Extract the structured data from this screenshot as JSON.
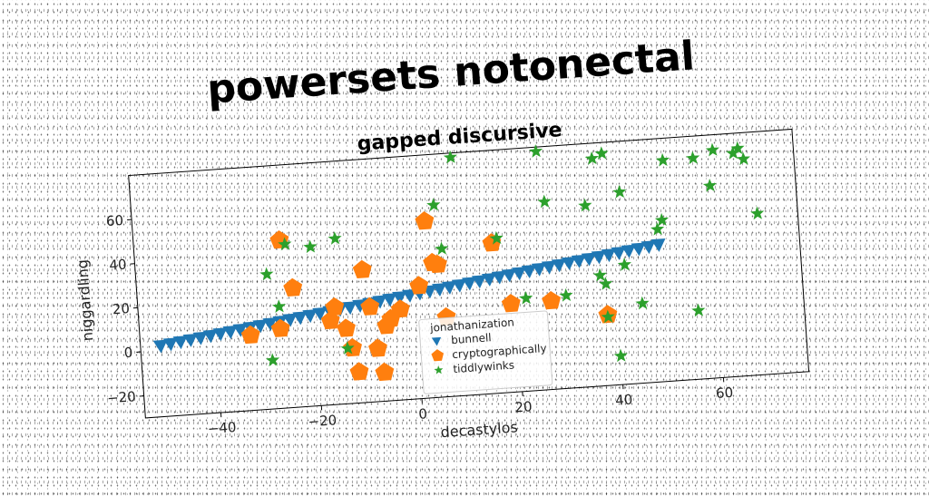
{
  "headline": {
    "title": "powersets notonectal",
    "subtitle": "gapped discursive"
  },
  "chart_data": {
    "type": "scatter",
    "xlabel": "decastylos",
    "ylabel": "niggardling",
    "xlim": [
      -55,
      77
    ],
    "ylim": [
      -30,
      80
    ],
    "xticks": [
      -40,
      -20,
      0,
      20,
      40,
      60
    ],
    "yticks": [
      -20,
      0,
      20,
      40,
      60
    ],
    "grid": false,
    "legend": {
      "placement": "lower-center",
      "title": "jonathanization",
      "entries": [
        "bunnell",
        "cryptographically",
        "tiddlywinks"
      ]
    },
    "series": [
      {
        "name": "bunnell",
        "marker": "triangle-down",
        "color": "#1f77b4",
        "x": [
          -51,
          -49,
          -47,
          -45,
          -43,
          -41,
          -39,
          -37,
          -35,
          -33,
          -31,
          -29,
          -27,
          -25,
          -23,
          -21,
          -19,
          -17,
          -15,
          -13,
          -11,
          -9,
          -7,
          -5,
          -3,
          -1,
          1,
          3,
          5,
          7,
          9,
          11,
          13,
          15,
          17,
          19,
          21,
          23,
          25,
          27,
          29,
          31,
          33,
          35,
          37,
          39,
          41,
          43,
          45,
          47,
          49
        ],
        "y": [
          2.0,
          2.6,
          3.2,
          3.8,
          4.4,
          5.0,
          5.6,
          6.2,
          6.8,
          7.4,
          8.0,
          8.6,
          9.2,
          9.8,
          10.4,
          11.0,
          11.6,
          12.2,
          12.8,
          13.4,
          14.0,
          14.6,
          15.2,
          15.8,
          16.4,
          17.0,
          17.6,
          18.2,
          18.8,
          19.4,
          20.0,
          20.6,
          21.2,
          21.8,
          22.4,
          23.0,
          23.6,
          24.2,
          24.8,
          25.4,
          26.0,
          26.6,
          27.2,
          27.8,
          28.4,
          29.0,
          29.6,
          30.2,
          30.8,
          31.4,
          32.0
        ]
      },
      {
        "name": "cryptographically",
        "marker": "pentagon",
        "color": "#ff7f0e",
        "x": [
          -33,
          -27,
          -26,
          -24,
          -17,
          -16,
          -14,
          -13,
          -12,
          -10,
          -9,
          -8,
          -7,
          -6,
          -5,
          -3,
          1,
          3,
          4,
          5,
          6,
          16,
          19,
          27,
          38
        ],
        "y": [
          4,
          6,
          46,
          24,
          8,
          14,
          4,
          -5,
          -16,
          30,
          13,
          -6,
          -17,
          4,
          7,
          11,
          21,
          50,
          31,
          30,
          6,
          38,
          10,
          10,
          2
        ]
      },
      {
        "name": "tiddlywinks",
        "marker": "star",
        "color": "#2ca02c",
        "x": [
          -29,
          -29,
          -27,
          -25,
          -20,
          -15,
          -14,
          5,
          6,
          9,
          17,
          22,
          26,
          27,
          30,
          35,
          37,
          37,
          38,
          38,
          39,
          40,
          42,
          42,
          45,
          49,
          50,
          51,
          56,
          57,
          60,
          61,
          65,
          66,
          67,
          69
        ],
        "y": [
          -8,
          31,
          16,
          44,
          42,
          45,
          -5,
          57,
          37,
          78,
          40,
          12,
          78,
          55,
          12,
          52,
          73,
          20,
          16,
          1,
          75,
          -17,
          57,
          24,
          6,
          39,
          43,
          70,
          1,
          70,
          57,
          73,
          71,
          73,
          68,
          43
        ]
      }
    ]
  }
}
